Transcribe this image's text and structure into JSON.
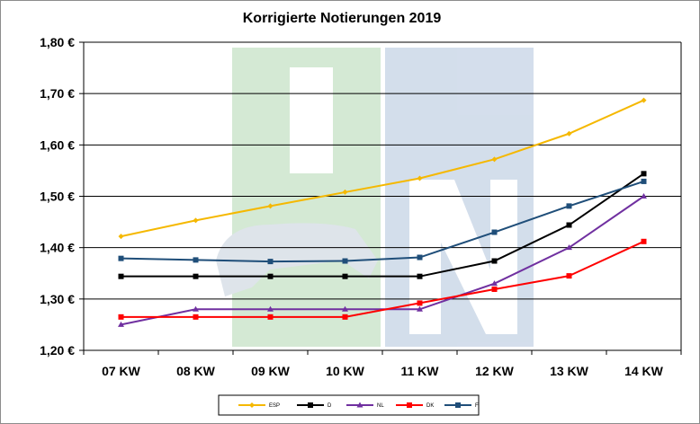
{
  "chart_data": {
    "type": "line",
    "title": "Korrigierte Notierungen 2019",
    "xlabel": "",
    "ylabel": "",
    "categories": [
      "07 KW",
      "08 KW",
      "09 KW",
      "10 KW",
      "11 KW",
      "12 KW",
      "13 KW",
      "14 KW"
    ],
    "ylim": [
      1.2,
      1.8
    ],
    "y_ticks": [
      "1,20 €",
      "1,30 €",
      "1,40 €",
      "1,50 €",
      "1,60 €",
      "1,70 €",
      "1,80 €"
    ],
    "y_tick_values": [
      1.2,
      1.3,
      1.4,
      1.5,
      1.6,
      1.7,
      1.8
    ],
    "grid": "horizontal",
    "legend_position": "bottom",
    "series": [
      {
        "name": "ESP",
        "color": "#f5b800",
        "marker": "diamond",
        "values": [
          1.422,
          1.453,
          1.481,
          1.508,
          1.535,
          1.572,
          1.622,
          1.687
        ]
      },
      {
        "name": "D",
        "color": "#000000",
        "marker": "square",
        "values": [
          1.344,
          1.344,
          1.344,
          1.344,
          1.344,
          1.374,
          1.444,
          1.544
        ]
      },
      {
        "name": "NL",
        "color": "#7030a0",
        "marker": "triangle",
        "values": [
          1.25,
          1.28,
          1.28,
          1.28,
          1.28,
          1.33,
          1.4,
          1.5
        ]
      },
      {
        "name": "DK",
        "color": "#ff0000",
        "marker": "square",
        "values": [
          1.265,
          1.265,
          1.265,
          1.265,
          1.292,
          1.319,
          1.345,
          1.412
        ]
      },
      {
        "name": "F",
        "color": "#1f4e79",
        "marker": "square",
        "values": [
          1.379,
          1.376,
          1.373,
          1.374,
          1.381,
          1.43,
          1.481,
          1.529
        ]
      }
    ]
  },
  "watermark": {
    "text": "ISN",
    "colors": [
      "#c9e3c9",
      "#c8d4e4"
    ]
  }
}
